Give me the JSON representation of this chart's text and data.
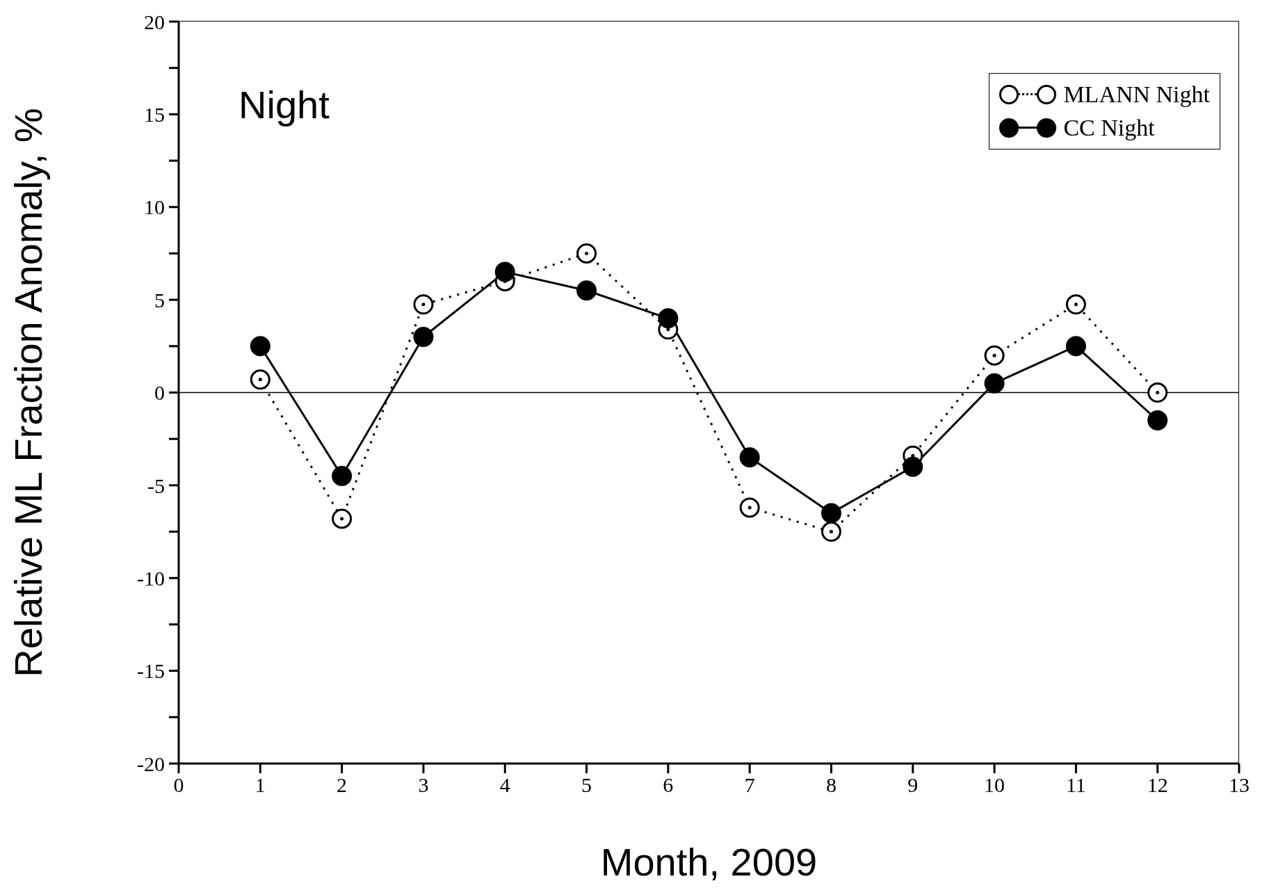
{
  "chart_data": {
    "type": "line",
    "xlabel": "Month, 2009",
    "ylabel": "Relative ML Fraction Anomaly, %",
    "annotations": [
      "Night"
    ],
    "x": [
      1,
      2,
      3,
      4,
      5,
      6,
      7,
      8,
      9,
      10,
      11,
      12
    ],
    "series": [
      {
        "name": "MLANN Night",
        "color": "#000000",
        "line_style": "dotted",
        "values": [
          0.7,
          -6.8,
          4.75,
          6.0,
          7.5,
          3.4,
          -6.2,
          -7.5,
          -3.4,
          2.0,
          4.75,
          0
        ]
      },
      {
        "name": "CC Night",
        "color": "#000000",
        "line_style": "solid",
        "values": [
          2.5,
          -4.5,
          3.0,
          6.5,
          5.5,
          4.0,
          -3.5,
          -6.5,
          -4.0,
          0.5,
          2.5,
          -1.5
        ]
      }
    ],
    "xlim": [
      0,
      13
    ],
    "xticks": [
      0,
      1,
      2,
      3,
      4,
      5,
      6,
      7,
      8,
      9,
      10,
      11,
      12,
      13
    ],
    "ylim": [
      -20,
      20
    ],
    "yticks": [
      -20,
      {
        "value": -17.5,
        "label": null
      },
      -15,
      {
        "value": -12.5,
        "label": null
      },
      -10,
      {
        "value": -7.5,
        "label": null
      },
      -5,
      {
        "value": -2.5,
        "label": null
      },
      0,
      {
        "value": 2.5,
        "label": null
      },
      5,
      {
        "value": 7.5,
        "label": null
      },
      10,
      {
        "value": 12.5,
        "label": null
      },
      15,
      {
        "value": 17.5,
        "label": null
      },
      20
    ],
    "ref_lines": [
      {
        "axis": "y",
        "value": 0,
        "color": "#000000"
      }
    ],
    "marker": "circle",
    "grid": false,
    "legend": "top right"
  }
}
